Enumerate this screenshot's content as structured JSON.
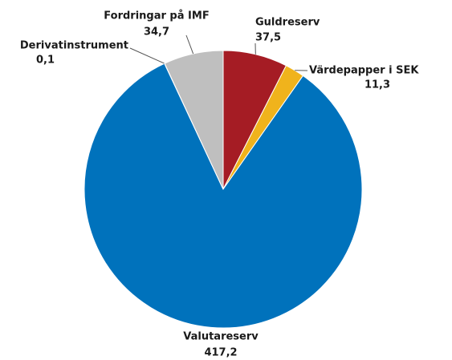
{
  "chart_data": {
    "type": "pie",
    "categories": [
      "Guldreserv",
      "Värdepapper i SEK",
      "Valutareserv",
      "Derivatinstrument",
      "Fordringar på IMF"
    ],
    "values": [
      37.5,
      11.3,
      417.2,
      0.1,
      34.7
    ],
    "value_labels": [
      "37,5",
      "11,3",
      "417,2",
      "0,1",
      "34,7"
    ],
    "colors": [
      "#a51c24",
      "#f0b31c",
      "#0072bc",
      "#7f7f7f",
      "#bfbfbf"
    ]
  }
}
